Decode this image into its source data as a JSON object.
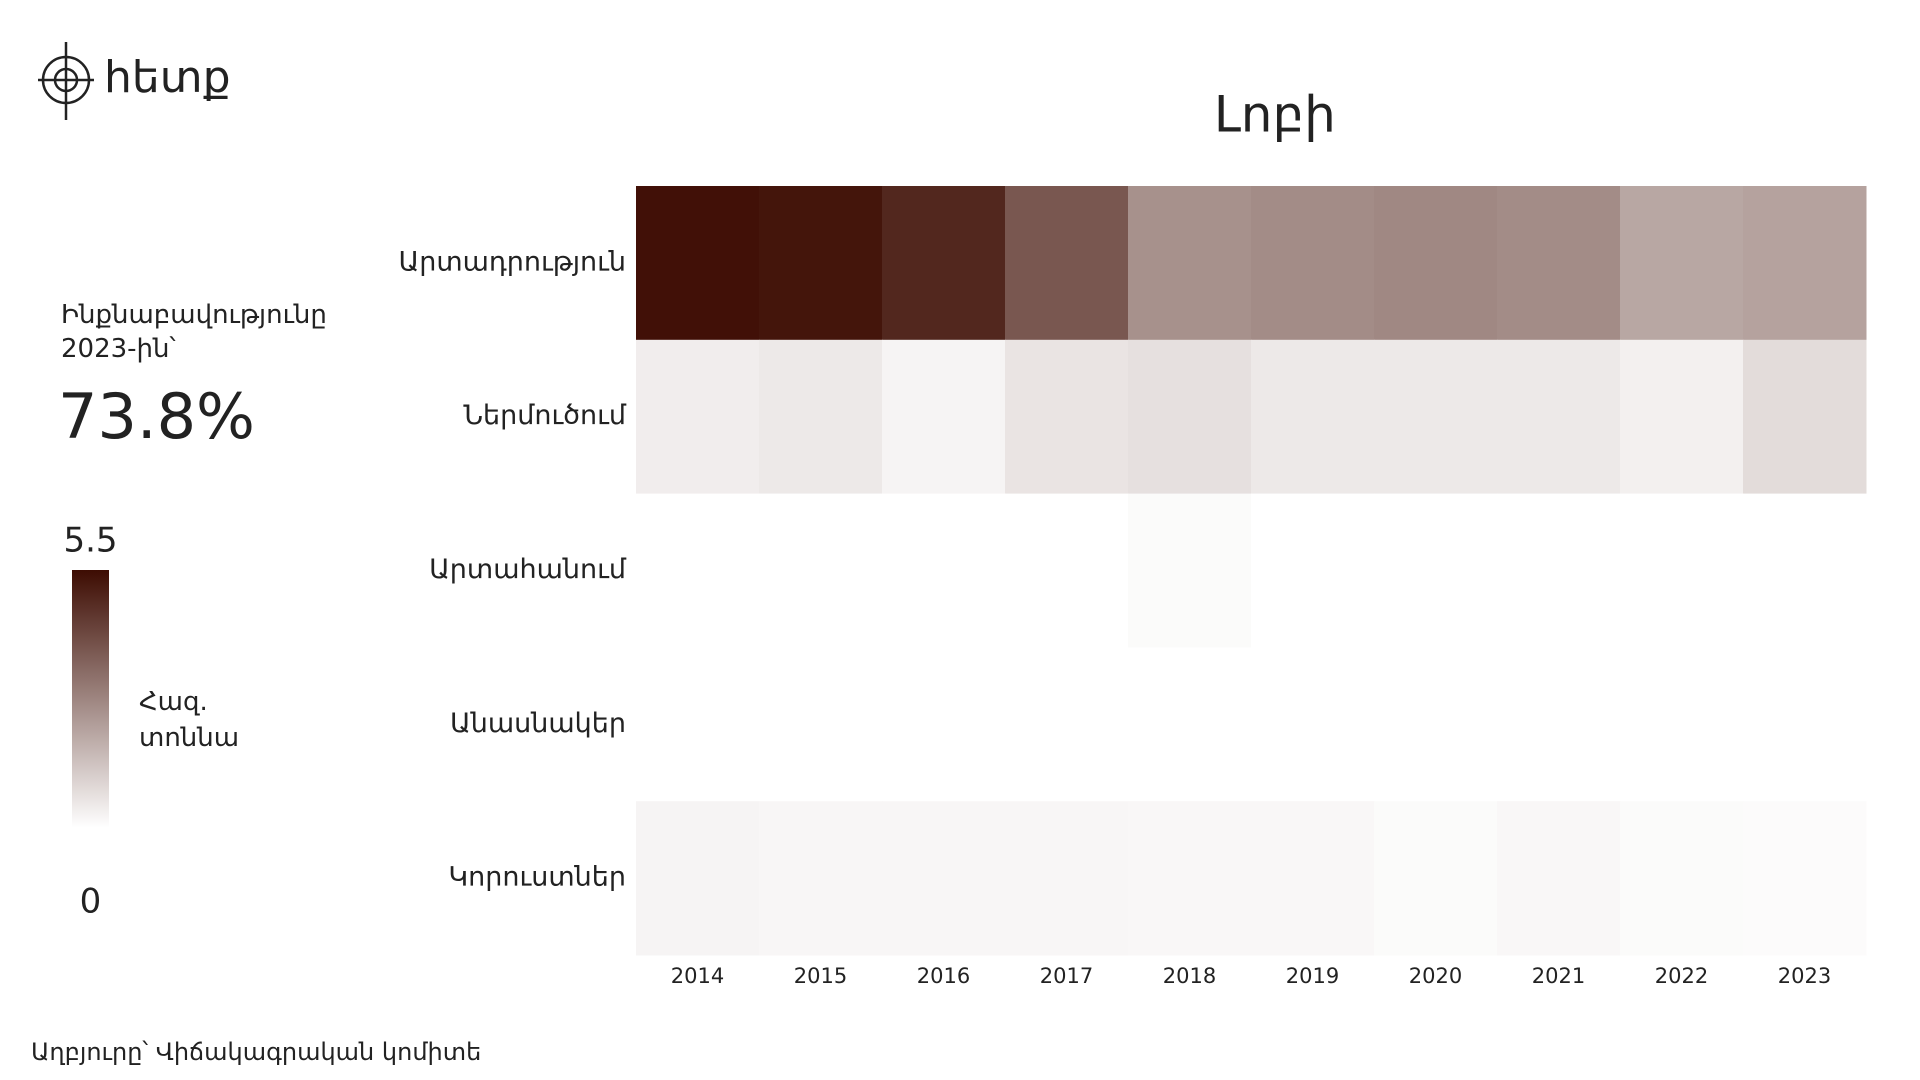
{
  "logo": "հետք",
  "side_note": {
    "label": "Ինքնաբավությունը 2023-ին՝",
    "value": "73.8%"
  },
  "source": "Աղբյուրը՝ Վիճակագրական կոմիտե",
  "chart_data": {
    "type": "heatmap",
    "title": "Լոբի",
    "x_categories": [
      "2014",
      "2015",
      "2016",
      "2017",
      "2018",
      "2019",
      "2020",
      "2021",
      "2022",
      "2023"
    ],
    "y_categories": [
      "Արտադրություն",
      "Ներմուծում",
      "Արտահանում",
      "Անասնակեր",
      "Կորուստներ"
    ],
    "values": [
      [
        5.4,
        5.3,
        4.9,
        3.8,
        2.5,
        2.6,
        2.7,
        2.6,
        2.0,
        2.1
      ],
      [
        0.4,
        0.5,
        0.25,
        0.6,
        0.7,
        0.5,
        0.5,
        0.5,
        0.35,
        0.8
      ],
      [
        0,
        0,
        0,
        0,
        0.1,
        0,
        0,
        0,
        0,
        0
      ],
      [
        0,
        0,
        0,
        0,
        0,
        0,
        0,
        0,
        0,
        0
      ],
      [
        0.25,
        0.2,
        0.2,
        0.2,
        0.18,
        0.18,
        0.1,
        0.18,
        0.1,
        0.08
      ]
    ],
    "zlim": [
      0,
      5.5
    ],
    "zticks": [
      0,
      5.5
    ],
    "colorbar_label": "Հազ. տոննա",
    "colors": {
      "low": "#ffffff",
      "high": "#3d0c02"
    }
  }
}
